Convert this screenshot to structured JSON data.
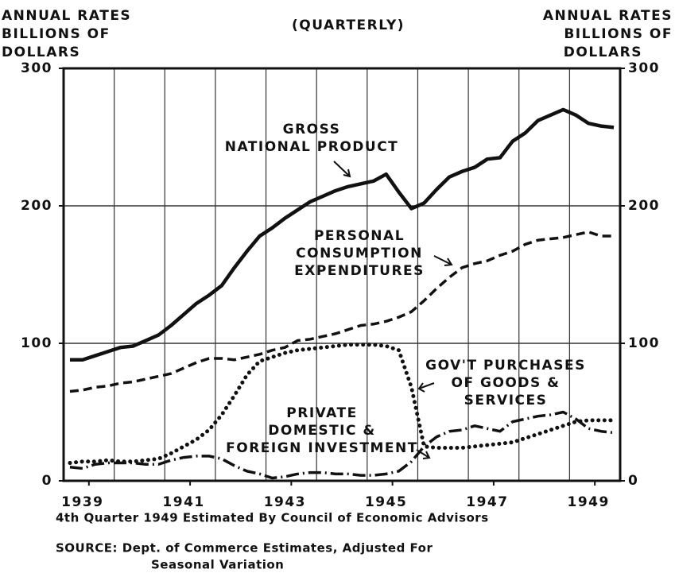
{
  "chart_data": {
    "type": "line",
    "header_left": [
      "ANNUAL RATES",
      "BILLIONS OF",
      "DOLLARS"
    ],
    "header_right": [
      "ANNUAL RATES",
      "BILLIONS OF",
      "DOLLARS"
    ],
    "subtitle": "(QUARTERLY)",
    "x": [
      1939.125,
      1939.375,
      1939.625,
      1939.875,
      1940.125,
      1940.375,
      1940.625,
      1940.875,
      1941.125,
      1941.375,
      1941.625,
      1941.875,
      1942.125,
      1942.375,
      1942.625,
      1942.875,
      1943.125,
      1943.375,
      1943.625,
      1943.875,
      1944.125,
      1944.375,
      1944.625,
      1944.875,
      1945.125,
      1945.375,
      1945.625,
      1945.875,
      1946.125,
      1946.375,
      1946.625,
      1946.875,
      1947.125,
      1947.375,
      1947.625,
      1947.875,
      1948.125,
      1948.375,
      1948.625,
      1948.875,
      1949.125,
      1949.375,
      1949.625,
      1949.875
    ],
    "series": [
      {
        "name_lines": [
          "GROSS",
          "NATIONAL PRODUCT"
        ],
        "color": "#111111",
        "dash": "solid",
        "values": [
          88,
          88,
          91,
          94,
          97,
          98,
          102,
          106,
          113,
          121,
          129,
          135,
          142,
          155,
          167,
          178,
          184,
          191,
          197,
          203,
          207,
          211,
          214,
          216,
          218,
          223,
          210,
          198,
          202,
          212,
          221,
          225,
          228,
          234,
          235,
          247,
          253,
          262,
          266,
          270,
          266,
          260,
          258,
          257
        ]
      },
      {
        "name_lines": [
          "PERSONAL",
          "CONSUMPTION",
          "EXPENDITURES"
        ],
        "color": "#111111",
        "dash": "dashed",
        "values": [
          65,
          66,
          68,
          69,
          71,
          72,
          74,
          76,
          78,
          82,
          86,
          89,
          89,
          88,
          90,
          92,
          95,
          97,
          102,
          103,
          105,
          107,
          110,
          113,
          114,
          116,
          119,
          123,
          131,
          140,
          148,
          155,
          158,
          160,
          164,
          167,
          172,
          175,
          176,
          177,
          179,
          181,
          178,
          178
        ]
      },
      {
        "name_lines": [
          "GOV'T PURCHASES",
          "OF GOODS &",
          "SERVICES"
        ],
        "color": "#111111",
        "dash": "dotted",
        "values": [
          13,
          14,
          14,
          15,
          14,
          14,
          15,
          16,
          20,
          25,
          30,
          37,
          48,
          62,
          77,
          87,
          90,
          93,
          95,
          96,
          97,
          98,
          99,
          99,
          99,
          98,
          95,
          68,
          25,
          24,
          24,
          24,
          25,
          26,
          27,
          28,
          31,
          34,
          37,
          40,
          43,
          44,
          44,
          44
        ]
      },
      {
        "name_lines": [
          "PRIVATE",
          "DOMESTIC &",
          "FOREIGN INVESTMENT"
        ],
        "color": "#111111",
        "dash": "dashdot",
        "values": [
          10,
          9,
          12,
          13,
          13,
          13,
          12,
          12,
          15,
          17,
          18,
          18,
          16,
          11,
          7,
          5,
          2,
          3,
          5,
          6,
          6,
          5,
          5,
          4,
          4,
          5,
          7,
          14,
          25,
          32,
          36,
          37,
          40,
          38,
          36,
          43,
          45,
          47,
          48,
          50,
          45,
          38,
          36,
          35
        ]
      }
    ],
    "xlim": [
      1939,
      1950
    ],
    "xticks": [
      {
        "value": 1939.5,
        "label": "1939"
      },
      {
        "value": 1941.5,
        "label": "1941"
      },
      {
        "value": 1943.5,
        "label": "1943"
      },
      {
        "value": 1945.5,
        "label": "1945"
      },
      {
        "value": 1947.5,
        "label": "1947"
      },
      {
        "value": 1949.5,
        "label": "1949"
      }
    ],
    "x_grid_lines": [
      1940,
      1941,
      1942,
      1943,
      1944,
      1945,
      1946,
      1947,
      1948,
      1949
    ],
    "ylim": [
      0,
      300
    ],
    "yticks": [
      0,
      100,
      200,
      300
    ],
    "y2lim": [
      0,
      300
    ],
    "y2ticks": [
      0,
      100,
      200,
      300
    ],
    "y_grid_lines": [
      100,
      200
    ],
    "footnotes": [
      "4th Quarter 1949 Estimated By Council of Economic Advisors",
      "SOURCE: Dept. of Commerce Estimates, Adjusted For",
      "Seasonal Variation"
    ]
  }
}
